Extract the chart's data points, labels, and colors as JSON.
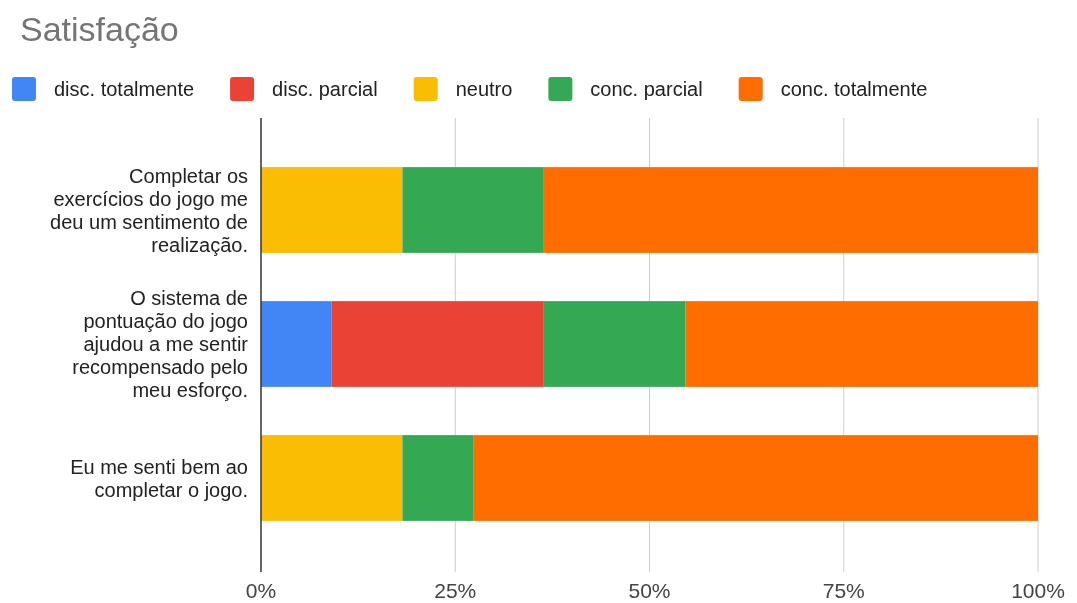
{
  "chart_data": {
    "type": "bar",
    "orientation": "horizontal",
    "stacked": true,
    "title": "Satisfação",
    "categories": [
      "Completar os exercícios do jogo me deu um sentimento de realização.",
      "O sistema de pontuação do jogo ajudou a me sentir recompensado pelo meu esforço.",
      "Eu me senti bem ao completar o jogo."
    ],
    "series": [
      {
        "name": "disc. totalmente",
        "color": "#4285f4",
        "values": [
          0,
          9.1,
          0
        ]
      },
      {
        "name": "disc. parcial",
        "color": "#ea4335",
        "values": [
          0,
          27.3,
          0
        ]
      },
      {
        "name": "neutro",
        "color": "#fbbc04",
        "values": [
          18.2,
          0,
          18.2
        ]
      },
      {
        "name": "conc. parcial",
        "color": "#34a853",
        "values": [
          18.2,
          18.2,
          9.1
        ]
      },
      {
        "name": "conc. totalmente",
        "color": "#ff6d01",
        "values": [
          63.6,
          45.4,
          72.7
        ]
      }
    ],
    "xlim": [
      0,
      100
    ],
    "xticks": [
      {
        "value": 0,
        "label": "0%"
      },
      {
        "value": 25,
        "label": "25%"
      },
      {
        "value": 50,
        "label": "50%"
      },
      {
        "value": 75,
        "label": "75%"
      },
      {
        "value": 100,
        "label": "100%"
      }
    ],
    "grid": "x",
    "legend": "top"
  }
}
